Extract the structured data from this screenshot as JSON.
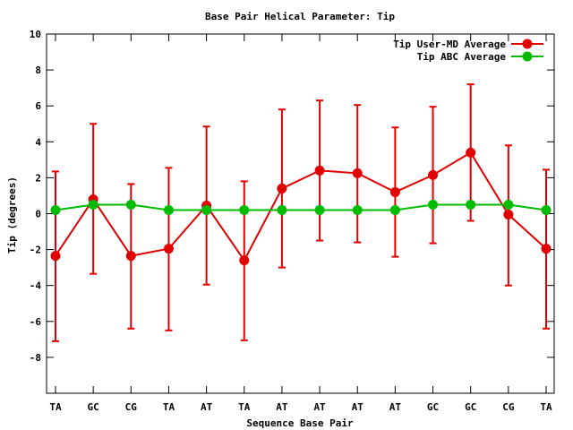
{
  "chart_data": {
    "type": "line",
    "title": "Base Pair Helical Parameter: Tip",
    "xlabel": "Sequence Base Pair",
    "ylabel": "Tip (degrees)",
    "categories": [
      "TA",
      "GC",
      "CG",
      "TA",
      "AT",
      "TA",
      "AT",
      "AT",
      "AT",
      "AT",
      "GC",
      "GC",
      "CG",
      "TA"
    ],
    "ylim": [
      -10,
      10
    ],
    "yticks": [
      -8,
      -6,
      -4,
      -2,
      0,
      2,
      4,
      6,
      8,
      10
    ],
    "grid": false,
    "legend_position": "top-right",
    "series": [
      {
        "name": "Tip User-MD Average",
        "color": "#e00000",
        "values": [
          -2.35,
          0.8,
          -2.35,
          -1.95,
          0.45,
          -2.6,
          1.4,
          2.4,
          2.25,
          1.2,
          2.15,
          3.4,
          -0.05,
          -1.95
        ],
        "error_low": [
          -7.1,
          -3.35,
          -6.4,
          -6.5,
          -3.95,
          -7.05,
          -3.0,
          -1.5,
          -1.6,
          -2.4,
          -1.65,
          -0.4,
          -4.0,
          -6.4
        ],
        "error_high": [
          2.35,
          5.0,
          1.65,
          2.55,
          4.85,
          1.8,
          5.8,
          6.3,
          6.05,
          4.8,
          5.95,
          7.2,
          3.8,
          2.45
        ]
      },
      {
        "name": "Tip ABC Average",
        "color": "#00bb00",
        "values": [
          0.2,
          0.5,
          0.5,
          0.2,
          0.2,
          0.2,
          0.2,
          0.2,
          0.2,
          0.2,
          0.5,
          0.5,
          0.5,
          0.2
        ]
      }
    ]
  }
}
